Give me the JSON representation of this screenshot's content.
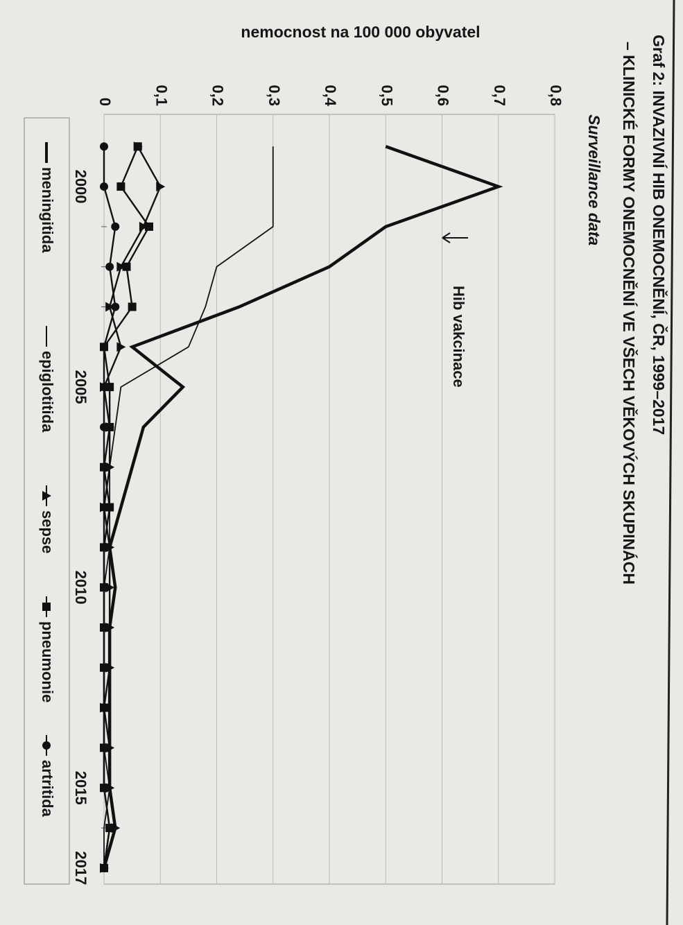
{
  "chart_data": {
    "type": "line",
    "title": "Graf 2: INVAZIVNÍ HIB ONEMOCNĚNÍ, ČR, 1999–2017",
    "subtitle": "– KLINICKÉ FORMY ONEMOCNĚNÍ VE VŠECH VĚKOVÝCH SKUPINÁCH",
    "note": "Surveillance data",
    "y_label": "nemocnost na 100 000 obyvatel",
    "annotation": "Hib vakcinace",
    "x": [
      1999,
      2000,
      2001,
      2002,
      2003,
      2004,
      2005,
      2006,
      2007,
      2008,
      2009,
      2010,
      2011,
      2012,
      2013,
      2014,
      2015,
      2016,
      2017
    ],
    "xlim": [
      1998.2,
      2017.4
    ],
    "xticks": [
      2000,
      2005,
      2010,
      2015,
      2017
    ],
    "ylim": [
      0,
      0.8
    ],
    "yticks": [
      0,
      {
        "value": 0.1,
        "label": "0,1"
      },
      {
        "value": 0.2,
        "label": "0,2"
      },
      {
        "value": 0.3,
        "label": "0,3"
      },
      {
        "value": 0.4,
        "label": "0,4"
      },
      {
        "value": 0.5,
        "label": "0,5"
      },
      {
        "value": 0.6,
        "label": "0,6"
      },
      {
        "value": 0.7,
        "label": "0,7"
      },
      {
        "value": 0.8,
        "label": "0,8"
      }
    ],
    "grid": true,
    "legend": "bottom",
    "series": [
      {
        "name": "meningitida",
        "color": "#111111",
        "marker": "none",
        "values": [
          0.5,
          0.7,
          0.5,
          0.4,
          0.24,
          0.05,
          0.14,
          0.07,
          0.05,
          0.03,
          0.01,
          0.02,
          0.01,
          0.01,
          0.01,
          0.01,
          0.01,
          0.02,
          0
        ]
      },
      {
        "name": "epiglotitida",
        "color": "#111111",
        "marker": "none",
        "values": [
          0.3,
          0.3,
          0.3,
          0.2,
          0.18,
          0.15,
          0.03,
          0.02,
          0.01,
          0.01,
          0.01,
          0,
          0,
          0,
          0,
          0,
          0.01,
          0,
          0
        ]
      },
      {
        "name": "sepse",
        "color": "#111111",
        "marker": "triangle",
        "values": [
          0.06,
          0.1,
          0.07,
          0.03,
          0.01,
          0.03,
          0,
          0.01,
          0.01,
          0,
          0.01,
          0.01,
          0.01,
          0.01,
          0,
          0.01,
          0.01,
          0.02,
          0
        ]
      },
      {
        "name": "pneumonie",
        "color": "#111111",
        "marker": "square",
        "values": [
          0.06,
          0.03,
          0.08,
          0.04,
          0.05,
          0,
          0.01,
          0.01,
          0,
          0.01,
          0,
          0,
          0,
          0,
          0,
          0,
          0,
          0.01,
          0
        ]
      },
      {
        "name": "artritida",
        "color": "#111111",
        "marker": "circle",
        "values": [
          0,
          0,
          0.02,
          0.01,
          0.02,
          0,
          0,
          0,
          0,
          0,
          0,
          0,
          0,
          0,
          0,
          0,
          0,
          0.01,
          0
        ]
      }
    ]
  }
}
